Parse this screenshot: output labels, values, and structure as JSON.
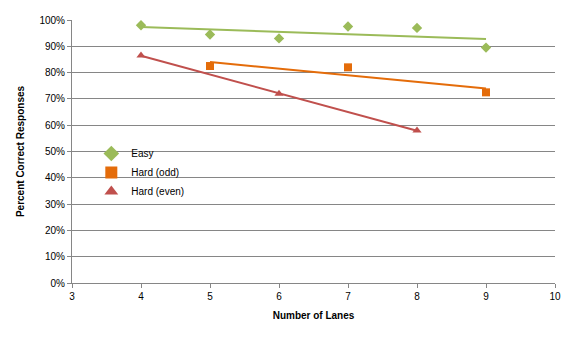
{
  "chart_data": {
    "type": "scatter",
    "x_label": "Number of Lanes",
    "y_label": "Percent Correct Responses",
    "xlim": [
      3,
      10
    ],
    "xticks": [
      3,
      4,
      5,
      6,
      7,
      8,
      9,
      10
    ],
    "ylim": [
      0,
      100
    ],
    "yticks": [
      {
        "value": 0,
        "label": "0%"
      },
      {
        "value": 10,
        "label": "10%"
      },
      {
        "value": 20,
        "label": "20%"
      },
      {
        "value": 30,
        "label": "30%"
      },
      {
        "value": 40,
        "label": "40%"
      },
      {
        "value": 50,
        "label": "50%"
      },
      {
        "value": 60,
        "label": "60%"
      },
      {
        "value": 70,
        "label": "70%"
      },
      {
        "value": 80,
        "label": "80%"
      },
      {
        "value": 90,
        "label": "90%"
      },
      {
        "value": 100,
        "label": "100%"
      }
    ],
    "grid": true,
    "legend": "left",
    "series": [
      {
        "name": "Easy",
        "type": "scatter",
        "marker": "diamond",
        "color": "#9bbb59",
        "x": [
          4,
          5,
          6,
          7,
          8,
          9
        ],
        "values": [
          98,
          94.5,
          93,
          97.5,
          97,
          89.5
        ]
      },
      {
        "name": "Hard (odd)",
        "type": "scatter",
        "marker": "square",
        "color": "#e46c0a",
        "x": [
          5,
          7,
          9
        ],
        "values": [
          82.5,
          82,
          72.5
        ]
      },
      {
        "name": "Hard (even)",
        "type": "scatter",
        "marker": "triangle-up",
        "color": "#c0504d",
        "x": [
          4,
          6,
          8
        ],
        "values": [
          86.5,
          72,
          58
        ]
      },
      {
        "type": "line",
        "line_style": "solid",
        "color": "#9bbb59",
        "x": [
          4,
          9
        ],
        "values": [
          97.3,
          92.8
        ]
      },
      {
        "type": "line",
        "line_style": "solid",
        "color": "#e46c0a",
        "x": [
          5,
          9
        ],
        "values": [
          84,
          74
        ]
      },
      {
        "type": "line",
        "line_style": "solid",
        "color": "#c0504d",
        "x": [
          4,
          8
        ],
        "values": [
          86.4,
          57.9
        ]
      }
    ]
  }
}
